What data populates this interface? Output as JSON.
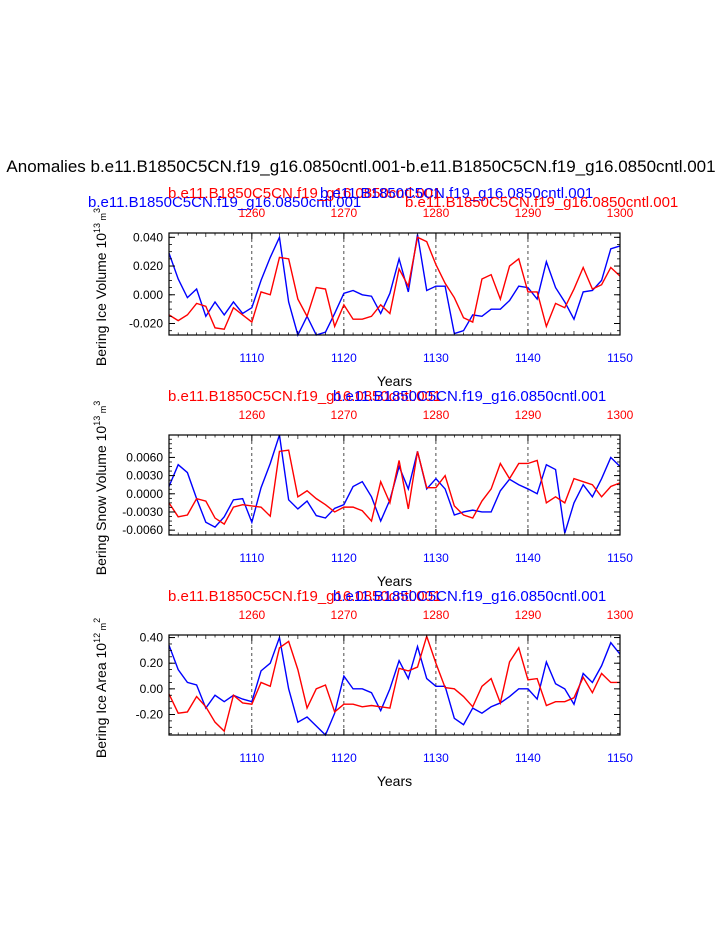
{
  "figure": {
    "main_title": "Anomalies b.e11.B1850C5CN.f19_g16.0850cntl.001-b.e11.B1850C5CN.f19_g16.0850cntl.001"
  },
  "colors": {
    "blue_series": "#0000ff",
    "red_series": "#ff0000",
    "axis": "#000000"
  },
  "chart_data": [
    {
      "type": "line",
      "title_blue": "b.e11.B1850C5CN.f19_g16.0850cntl.001",
      "title_red": "b.e11.B1850C5CN.f19_g16.0850cntl.001",
      "title_red_left": "b.e11.B1850C5CN.f19_g16.0850cntl.001",
      "title_blue_right": "b.e11.B1850C5CN.f19_g16.0850cntl.001",
      "ylabel": "Bering Ice Volume 10",
      "ylabel_exp": "13",
      "ylabel_unit": " m",
      "ylabel_unit_exp": "3",
      "xlabel": "Years",
      "ylim": [
        -0.028,
        0.043
      ],
      "yticks": [
        -0.02,
        0.0,
        0.02,
        0.04
      ],
      "ytick_labels": [
        "-0.020",
        "0.000",
        "0.020",
        "0.040"
      ],
      "bottom_axis": {
        "range": [
          1101,
          1150
        ],
        "ticks": [
          1110,
          1120,
          1130,
          1140,
          1150
        ]
      },
      "top_axis": {
        "range": [
          1251,
          1300
        ],
        "ticks": [
          1260,
          1270,
          1280,
          1290,
          1300
        ]
      },
      "series": [
        {
          "name": "blue",
          "color": "#0000ff",
          "x_start": 1101,
          "values": [
            0.029,
            0.011,
            -0.002,
            0.004,
            -0.015,
            -0.005,
            -0.014,
            -0.005,
            -0.013,
            -0.009,
            0.01,
            0.026,
            0.04,
            -0.005,
            -0.028,
            -0.015,
            -0.028,
            -0.026,
            -0.013,
            0.001,
            0.003,
            0.0,
            -0.001,
            -0.013,
            0.001,
            0.025,
            0.002,
            0.042,
            0.003,
            0.006,
            0.006,
            -0.027,
            -0.025,
            -0.014,
            -0.015,
            -0.01,
            -0.01,
            -0.004,
            0.006,
            0.005,
            -0.003,
            0.023,
            0.005,
            -0.005,
            -0.017,
            0.002,
            0.003,
            0.01,
            0.032,
            0.034
          ]
        },
        {
          "name": "red",
          "color": "#ff0000",
          "x_start": 1251,
          "values": [
            -0.014,
            -0.018,
            -0.014,
            -0.006,
            -0.008,
            -0.023,
            -0.024,
            -0.009,
            -0.014,
            -0.019,
            0.002,
            0.0,
            0.026,
            0.025,
            -0.003,
            -0.015,
            0.005,
            0.004,
            -0.022,
            -0.007,
            -0.017,
            -0.017,
            -0.015,
            -0.007,
            -0.013,
            0.018,
            0.006,
            0.04,
            0.037,
            0.021,
            0.008,
            -0.002,
            -0.016,
            -0.019,
            0.011,
            0.014,
            -0.003,
            0.02,
            0.025,
            0.002,
            0.002,
            -0.022,
            -0.006,
            -0.009,
            0.004,
            0.019,
            0.004,
            0.007,
            0.019,
            0.013
          ]
        }
      ]
    },
    {
      "type": "line",
      "title_blue": "b.e11.B1850C5CN.f19_g16.0850cntl.001",
      "title_red": "b.e11.B1850C5CN.f19_g16.0850cntl.001",
      "ylabel": "Bering Snow Volume 10",
      "ylabel_exp": "13",
      "ylabel_unit": " m",
      "ylabel_unit_exp": "3",
      "xlabel": "Years",
      "ylim": [
        -0.0068,
        0.0097
      ],
      "yticks": [
        -0.006,
        -0.003,
        0.0,
        0.003,
        0.006
      ],
      "ytick_labels": [
        "-0.0060",
        "-0.0030",
        "0.0000",
        "0.0030",
        "0.0060"
      ],
      "bottom_axis": {
        "range": [
          1101,
          1150
        ],
        "ticks": [
          1110,
          1120,
          1130,
          1140,
          1150
        ]
      },
      "top_axis": {
        "range": [
          1251,
          1300
        ],
        "ticks": [
          1260,
          1270,
          1280,
          1290,
          1300
        ]
      },
      "series": [
        {
          "name": "blue",
          "color": "#0000ff",
          "x_start": 1101,
          "values": [
            0.0012,
            0.0048,
            0.0035,
            -0.0008,
            -0.0047,
            -0.0055,
            -0.0038,
            -0.001,
            -0.0008,
            -0.0047,
            0.001,
            0.005,
            0.0097,
            -0.001,
            -0.0025,
            -0.0012,
            -0.0036,
            -0.004,
            -0.0024,
            -0.0018,
            0.0012,
            0.002,
            -0.0005,
            -0.0045,
            -0.001,
            0.0045,
            0.0008,
            0.007,
            0.0008,
            0.0025,
            0.0008,
            -0.0035,
            -0.003,
            -0.0027,
            -0.003,
            -0.003,
            0.0005,
            0.0024,
            0.0015,
            0.0008,
            0.0,
            0.0048,
            0.004,
            -0.0065,
            -0.0015,
            0.0015,
            -0.0005,
            0.0025,
            0.006,
            0.0045
          ]
        },
        {
          "name": "red",
          "color": "#ff0000",
          "x_start": 1251,
          "values": [
            -0.0015,
            -0.0038,
            -0.0035,
            -0.0008,
            -0.0012,
            -0.004,
            -0.005,
            -0.0022,
            -0.0018,
            -0.002,
            -0.0022,
            -0.0037,
            0.007,
            0.0072,
            -0.0005,
            0.0005,
            -0.0008,
            -0.0018,
            -0.003,
            -0.0022,
            -0.0022,
            -0.0028,
            -0.0045,
            0.002,
            -0.0015,
            0.0055,
            -0.0025,
            0.007,
            0.001,
            0.001,
            0.003,
            -0.002,
            -0.0035,
            -0.004,
            -0.0012,
            0.0008,
            0.005,
            0.0025,
            0.005,
            0.005,
            0.0055,
            -0.0015,
            -0.0005,
            -0.0015,
            0.0025,
            0.002,
            0.0015,
            -0.0005,
            0.0012,
            0.0018
          ]
        }
      ]
    },
    {
      "type": "line",
      "title_blue": "b.e11.B1850C5CN.f19_g16.0850cntl.001",
      "title_red": "b.e11.B1850C5CN.f19_g16.0850cntl.001",
      "ylabel": "Bering Ice Area 10",
      "ylabel_exp": "12",
      "ylabel_unit": " m",
      "ylabel_unit_exp": "2",
      "xlabel": "Years",
      "ylim": [
        -0.36,
        0.42
      ],
      "yticks": [
        -0.2,
        0.0,
        0.2,
        0.4
      ],
      "ytick_labels": [
        "-0.20",
        "0.00",
        "0.20",
        "0.40"
      ],
      "bottom_axis": {
        "range": [
          1101,
          1150
        ],
        "ticks": [
          1110,
          1120,
          1130,
          1140,
          1150
        ]
      },
      "top_axis": {
        "range": [
          1251,
          1300
        ],
        "ticks": [
          1260,
          1270,
          1280,
          1290,
          1300
        ]
      },
      "series": [
        {
          "name": "blue",
          "color": "#0000ff",
          "x_start": 1101,
          "values": [
            0.34,
            0.15,
            0.05,
            0.03,
            -0.15,
            -0.05,
            -0.1,
            -0.05,
            -0.08,
            -0.1,
            0.14,
            0.2,
            0.4,
            0.0,
            -0.26,
            -0.22,
            -0.29,
            -0.36,
            -0.19,
            0.1,
            0.0,
            0.0,
            -0.03,
            -0.17,
            0.0,
            0.22,
            0.08,
            0.33,
            0.08,
            0.02,
            0.02,
            -0.23,
            -0.28,
            -0.15,
            -0.19,
            -0.14,
            -0.11,
            -0.06,
            0.0,
            0.0,
            -0.08,
            0.21,
            0.04,
            0.0,
            -0.12,
            0.12,
            0.05,
            0.18,
            0.36,
            0.27
          ]
        },
        {
          "name": "red",
          "color": "#ff0000",
          "x_start": 1251,
          "values": [
            -0.04,
            -0.19,
            -0.18,
            -0.06,
            -0.14,
            -0.26,
            -0.33,
            -0.05,
            -0.11,
            -0.12,
            0.05,
            0.02,
            0.32,
            0.37,
            0.15,
            -0.15,
            0.0,
            0.03,
            -0.18,
            -0.12,
            -0.12,
            -0.14,
            -0.13,
            -0.14,
            -0.15,
            0.16,
            0.14,
            0.17,
            0.41,
            0.2,
            0.01,
            0.0,
            -0.06,
            -0.14,
            0.02,
            0.08,
            -0.11,
            0.21,
            0.32,
            0.07,
            0.08,
            -0.13,
            -0.1,
            -0.1,
            -0.07,
            0.09,
            -0.03,
            0.12,
            0.05,
            0.05
          ]
        }
      ]
    }
  ]
}
